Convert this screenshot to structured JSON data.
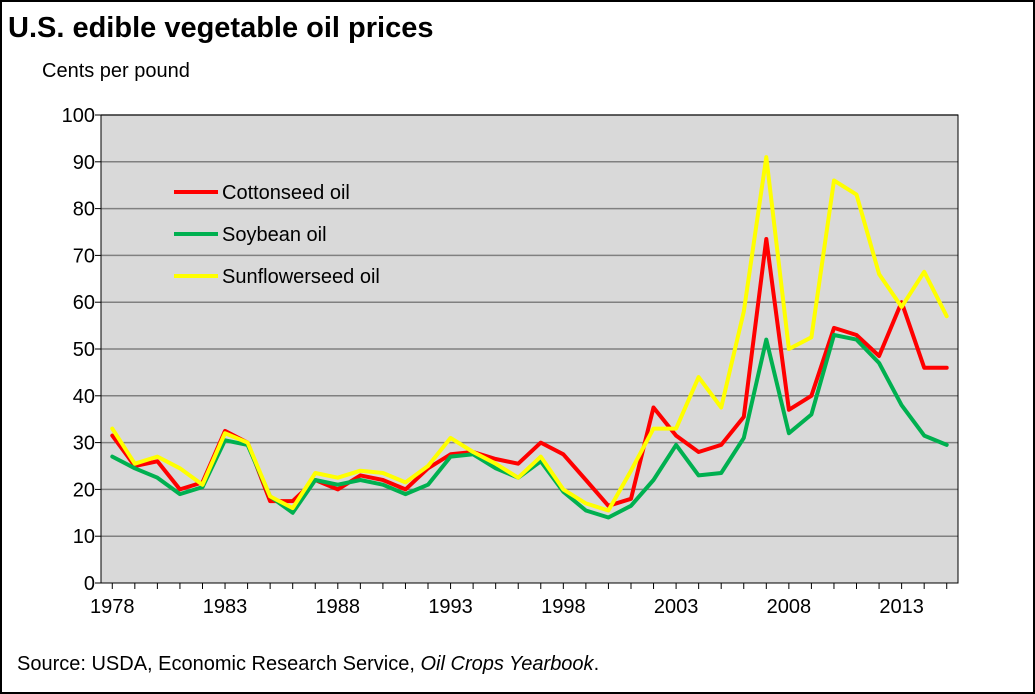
{
  "chart_data": {
    "type": "line",
    "title": "U.S. edible vegetable oil prices",
    "ylabel": "Cents per pound",
    "xlabel": "",
    "ylim": [
      0,
      100
    ],
    "yticks": [
      0,
      10,
      20,
      30,
      40,
      50,
      60,
      70,
      80,
      90,
      100
    ],
    "xlim": [
      1977.5,
      2015.5
    ],
    "xticks": [
      1978,
      1983,
      1988,
      1993,
      1998,
      2003,
      2008,
      2013
    ],
    "grid": true,
    "legend_position": "top-left",
    "plot_background": "#d9d9d9",
    "x": [
      1978,
      1979,
      1980,
      1981,
      1982,
      1983,
      1984,
      1985,
      1986,
      1987,
      1988,
      1989,
      1990,
      1991,
      1992,
      1993,
      1994,
      1995,
      1996,
      1997,
      1998,
      1999,
      2000,
      2001,
      2002,
      2003,
      2004,
      2005,
      2006,
      2007,
      2008,
      2009,
      2010,
      2011,
      2012,
      2013,
      2014,
      2015
    ],
    "series": [
      {
        "name": "Cottonseed oil",
        "color": "#ff0000",
        "values": [
          31.5,
          25,
          26,
          20,
          21.5,
          32.5,
          30,
          17.5,
          17.5,
          22,
          20,
          23,
          22,
          20,
          24.5,
          27.5,
          28,
          26.5,
          25.5,
          30,
          27.5,
          22,
          16.5,
          18,
          37.5,
          31.5,
          28,
          29.5,
          35.5,
          73.5,
          37,
          40,
          54.5,
          53,
          48.5,
          60,
          46,
          46
        ]
      },
      {
        "name": "Soybean oil",
        "color": "#00b050",
        "values": [
          27,
          24.5,
          22.5,
          19,
          20.5,
          30.5,
          29.5,
          18.5,
          15,
          22,
          21,
          22,
          21,
          19,
          21,
          27,
          27.5,
          24.5,
          22.5,
          26,
          19.5,
          15.5,
          14,
          16.5,
          22,
          29.5,
          23,
          23.5,
          31,
          52,
          32,
          36,
          53,
          52,
          47,
          38,
          31.5,
          29.5
        ]
      },
      {
        "name": "Sunflowerseed oil",
        "color": "#ffff00",
        "values": [
          33,
          25.5,
          27,
          24.5,
          21,
          32,
          30,
          18.5,
          16,
          23.5,
          22.5,
          24,
          23.5,
          21.5,
          25,
          31,
          28,
          25.5,
          22.5,
          27,
          20,
          17,
          15.5,
          24,
          33,
          33,
          44,
          37.5,
          58,
          91,
          50,
          52.5,
          86,
          83,
          66,
          59,
          66.5,
          57
        ]
      }
    ]
  },
  "source": {
    "prefix": "Source: USDA, Economic Research Service, ",
    "publication": "Oil Crops Yearbook",
    "suffix": "."
  }
}
